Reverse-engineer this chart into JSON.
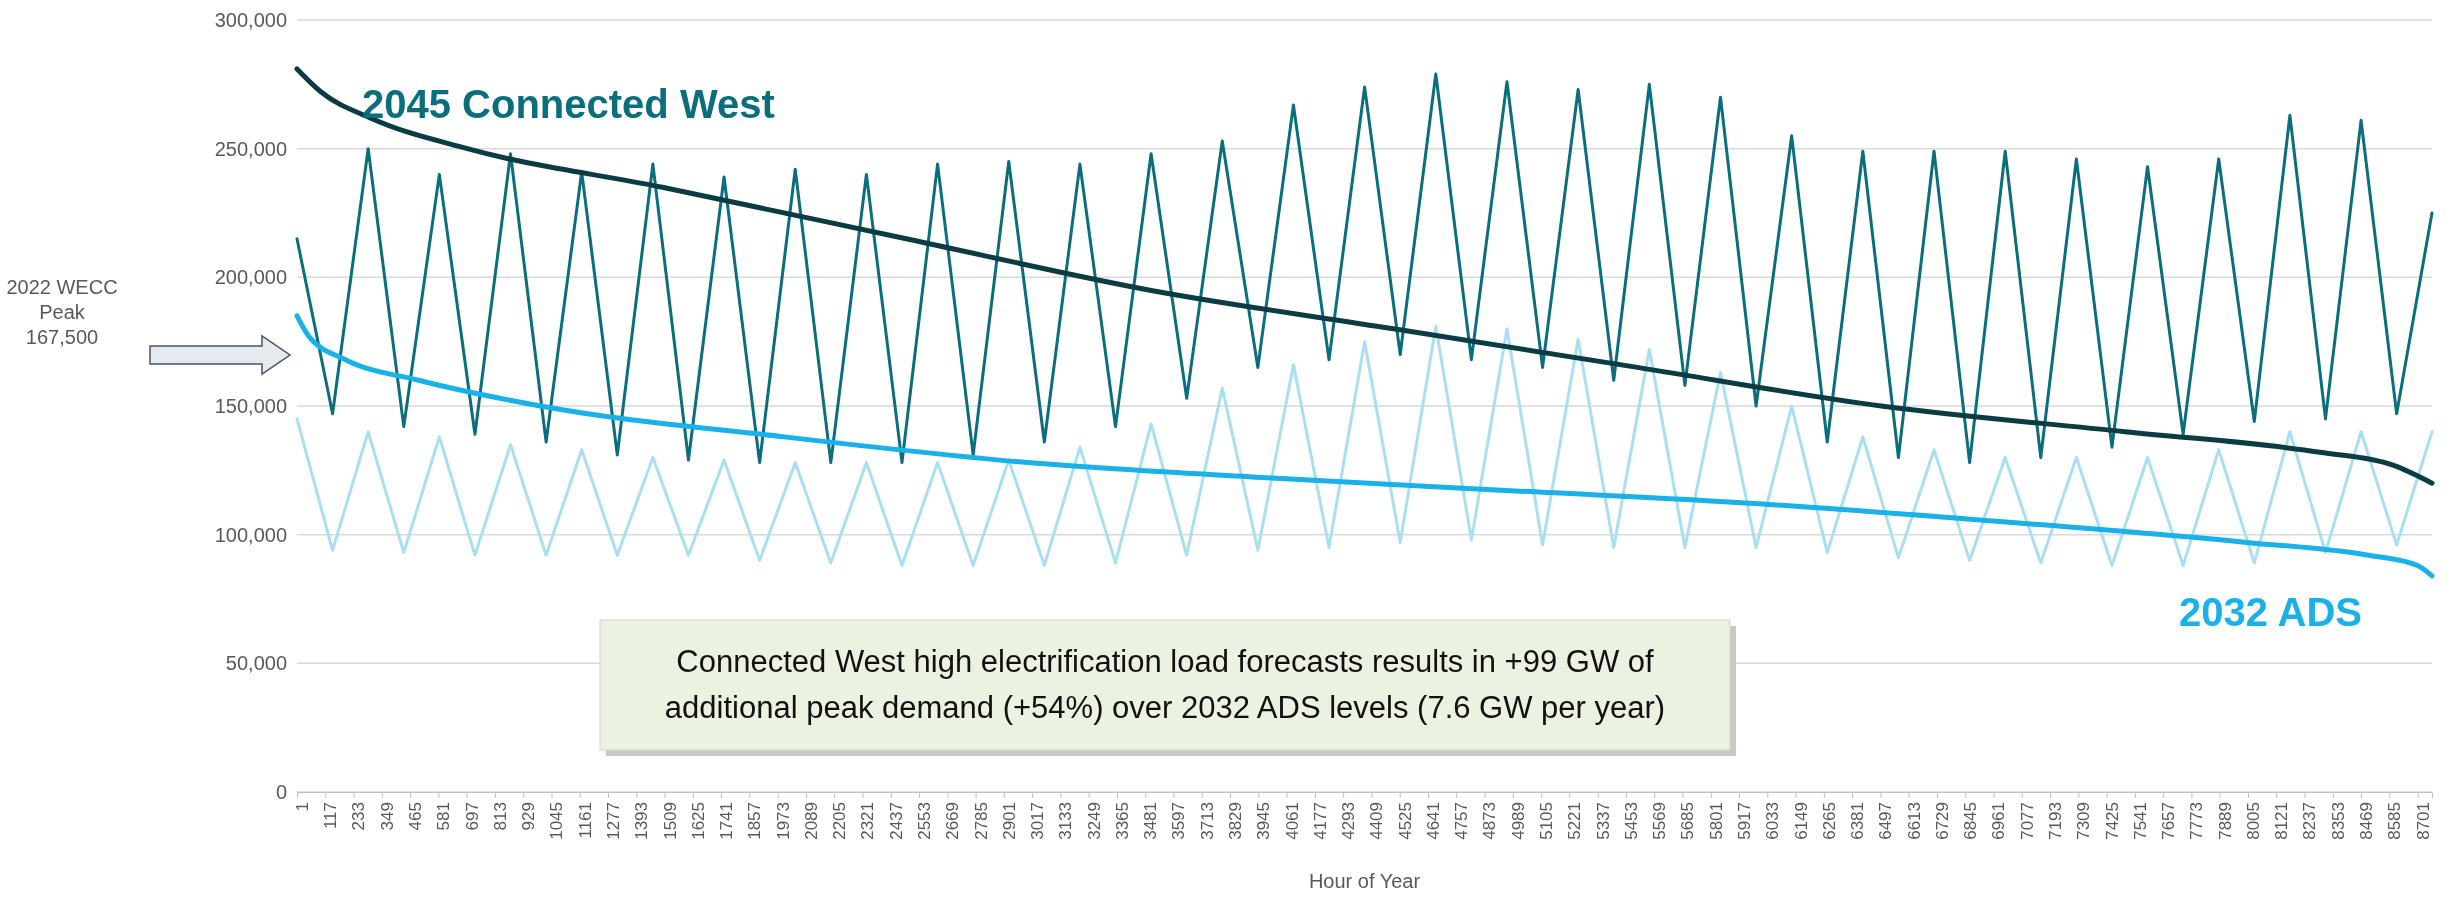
{
  "chart_data": {
    "type": "line",
    "xlabel": "Hour of Year",
    "xlim": [
      1,
      8760
    ],
    "ylim": [
      0,
      300000
    ],
    "xticks": [
      1,
      117,
      233,
      349,
      465,
      581,
      697,
      813,
      929,
      1045,
      1161,
      1277,
      1393,
      1509,
      1625,
      1741,
      1857,
      1973,
      2089,
      2205,
      2321,
      2437,
      2553,
      2669,
      2785,
      2901,
      3017,
      3133,
      3249,
      3365,
      3481,
      3597,
      3713,
      3829,
      3945,
      4061,
      4177,
      4293,
      4409,
      4525,
      4641,
      4757,
      4873,
      4989,
      5105,
      5221,
      5337,
      5453,
      5569,
      5685,
      5801,
      5917,
      6033,
      6149,
      6265,
      6381,
      6497,
      6613,
      6729,
      6845,
      6961,
      7077,
      7193,
      7309,
      7425,
      7541,
      7657,
      7773,
      7889,
      8005,
      8121,
      8237,
      8353,
      8469,
      8585,
      8701
    ],
    "yticks": [
      0,
      {
        "value": 50000,
        "label": "50,000"
      },
      {
        "value": 100000,
        "label": "100,000"
      },
      {
        "value": 150000,
        "label": "150,000"
      },
      {
        "value": 200000,
        "label": "200,000"
      },
      {
        "value": 250000,
        "label": "250,000"
      },
      {
        "value": 300000,
        "label": "300,000"
      }
    ],
    "grid": "y",
    "series": [
      {
        "name": "2045 Connected West",
        "color": "#0b6e7c",
        "x": [
          1,
          147,
          293,
          439,
          585,
          731,
          877,
          1023,
          1169,
          1315,
          1461,
          1607,
          1753,
          1899,
          2045,
          2191,
          2337,
          2483,
          2629,
          2775,
          2921,
          3067,
          3213,
          3359,
          3505,
          3651,
          3797,
          3943,
          4089,
          4235,
          4381,
          4527,
          4673,
          4819,
          4965,
          5111,
          5257,
          5403,
          5549,
          5695,
          5841,
          5987,
          6133,
          6279,
          6425,
          6571,
          6717,
          6863,
          7009,
          7155,
          7301,
          7447,
          7593,
          7739,
          7885,
          8031,
          8177,
          8323,
          8469,
          8615,
          8760
        ],
        "values": [
          215000,
          147000,
          250000,
          142000,
          240000,
          139000,
          248000,
          136000,
          241000,
          131000,
          244000,
          129000,
          239000,
          128000,
          242000,
          128000,
          240000,
          128000,
          244000,
          131000,
          245000,
          136000,
          244000,
          142000,
          248000,
          153000,
          253000,
          165000,
          267000,
          168000,
          274000,
          170000,
          279000,
          168000,
          276000,
          165000,
          273000,
          160000,
          275000,
          158000,
          270000,
          150000,
          255000,
          136000,
          249000,
          130000,
          249000,
          128000,
          249000,
          130000,
          246000,
          134000,
          243000,
          139000,
          246000,
          144000,
          263000,
          145000,
          261000,
          147000,
          225000
        ]
      },
      {
        "color": "#a9dff0",
        "x": [
          1,
          147,
          293,
          439,
          585,
          731,
          877,
          1023,
          1169,
          1315,
          1461,
          1607,
          1753,
          1899,
          2045,
          2191,
          2337,
          2483,
          2629,
          2775,
          2921,
          3067,
          3213,
          3359,
          3505,
          3651,
          3797,
          3943,
          4089,
          4235,
          4381,
          4527,
          4673,
          4819,
          4965,
          5111,
          5257,
          5403,
          5549,
          5695,
          5841,
          5987,
          6133,
          6279,
          6425,
          6571,
          6717,
          6863,
          7009,
          7155,
          7301,
          7447,
          7593,
          7739,
          7885,
          8031,
          8177,
          8323,
          8469,
          8615,
          8760
        ],
        "values": [
          145000,
          94000,
          140000,
          93000,
          138000,
          92000,
          135000,
          92000,
          133000,
          92000,
          130000,
          92000,
          129000,
          90000,
          128000,
          89000,
          128000,
          88000,
          128000,
          88000,
          129000,
          88000,
          134000,
          89000,
          143000,
          92000,
          157000,
          94000,
          166000,
          95000,
          175000,
          97000,
          181000,
          98000,
          180000,
          96000,
          176000,
          95000,
          172000,
          95000,
          163000,
          95000,
          150000,
          93000,
          138000,
          91000,
          133000,
          90000,
          130000,
          89000,
          130000,
          88000,
          130000,
          88000,
          133000,
          89000,
          140000,
          93000,
          140000,
          96000,
          140000
        ]
      },
      {
        "color": "#0b3c44",
        "x": [
          1,
          100,
          300,
          700,
          1500,
          2500,
          3500,
          4500,
          5500,
          6500,
          7500,
          8300,
          8600,
          8760
        ],
        "values": [
          281000,
          272000,
          262000,
          250000,
          235000,
          215000,
          195000,
          180000,
          165000,
          150000,
          140000,
          132000,
          127000,
          120000
        ]
      },
      {
        "name": "2032 ADS",
        "color": "#1ab0e8",
        "x": [
          1,
          50,
          200,
          500,
          1000,
          2000,
          3000,
          4000,
          5000,
          6000,
          7000,
          8000,
          8500,
          8700,
          8760
        ],
        "values": [
          185000,
          177000,
          168000,
          160000,
          150000,
          138000,
          128000,
          122000,
          117000,
          112000,
          105000,
          97000,
          92000,
          88000,
          84000
        ]
      }
    ],
    "annotations": [
      "2022 WECC Peak 167,500",
      "Connected West high electrification load forecasts results in +99 GW of additional peak demand (+54%) over 2032 ADS levels (7.6 GW per year)"
    ]
  }
}
